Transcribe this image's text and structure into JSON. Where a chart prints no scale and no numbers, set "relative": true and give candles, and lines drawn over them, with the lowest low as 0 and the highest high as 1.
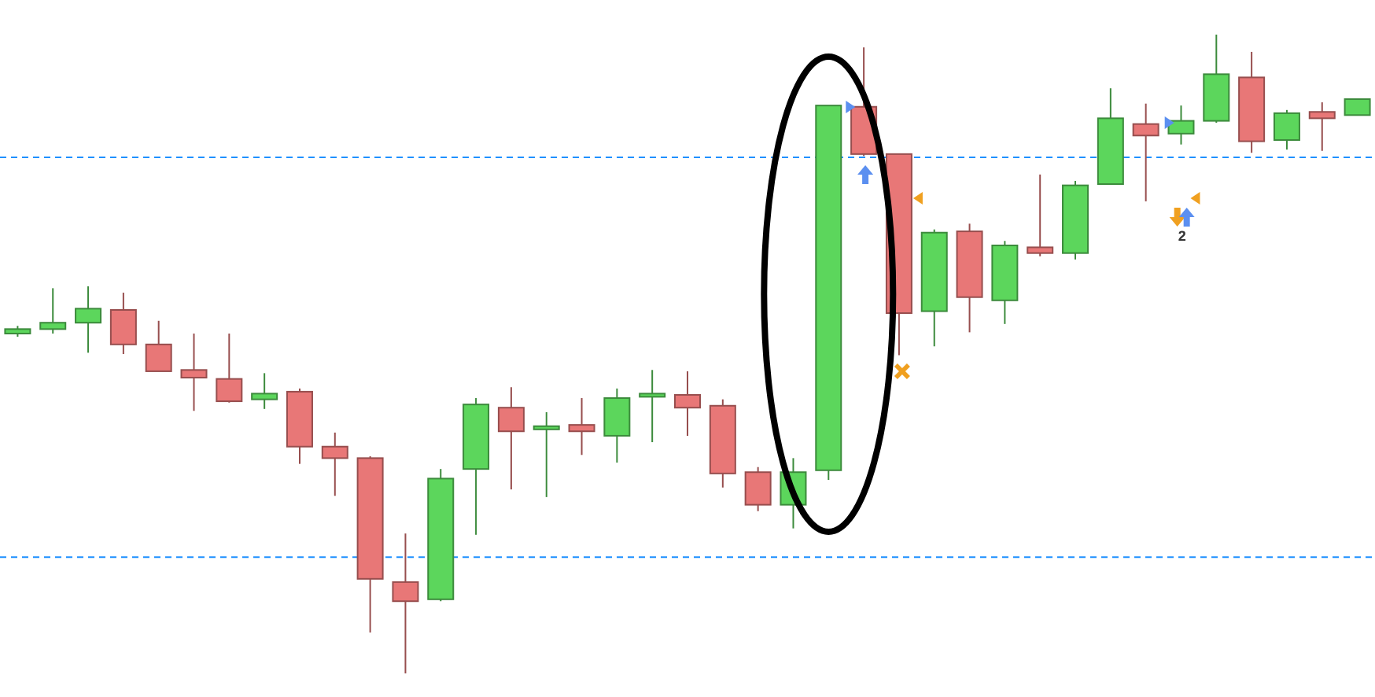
{
  "chart_data": {
    "type": "candlestick",
    "relative": true,
    "categories": [
      null,
      null,
      null,
      null,
      null,
      null,
      null,
      null,
      null,
      null,
      null,
      null,
      null,
      null,
      null,
      null,
      null,
      null,
      null,
      null,
      null,
      null,
      null,
      null,
      null,
      null,
      null,
      null,
      null,
      null,
      null,
      null,
      null,
      null,
      null,
      null,
      null,
      null,
      null
    ],
    "ohlc": [
      [
        0.532,
        0.544,
        0.527,
        0.539
      ],
      [
        0.539,
        0.603,
        0.532,
        0.549
      ],
      [
        0.549,
        0.606,
        0.502,
        0.571
      ],
      [
        0.569,
        0.596,
        0.5,
        0.515
      ],
      [
        0.515,
        0.552,
        0.473,
        0.473
      ],
      [
        0.475,
        0.532,
        0.411,
        0.463
      ],
      [
        0.461,
        0.532,
        0.424,
        0.426
      ],
      [
        0.429,
        0.47,
        0.414,
        0.438
      ],
      [
        0.441,
        0.446,
        0.328,
        0.355
      ],
      [
        0.355,
        0.377,
        0.278,
        0.337
      ],
      [
        0.337,
        0.34,
        0.064,
        0.148
      ],
      [
        0.143,
        0.219,
        0,
        0.113
      ],
      [
        0.116,
        0.32,
        0.113,
        0.305
      ],
      [
        0.32,
        0.431,
        0.217,
        0.421
      ],
      [
        0.416,
        0.448,
        0.288,
        0.379
      ],
      [
        0.382,
        0.409,
        0.276,
        0.387
      ],
      [
        0.389,
        0.431,
        0.342,
        0.379
      ],
      [
        0.372,
        0.446,
        0.33,
        0.431
      ],
      [
        0.433,
        0.475,
        0.362,
        0.438
      ],
      [
        0.436,
        0.473,
        0.372,
        0.416
      ],
      [
        0.419,
        0.429,
        0.291,
        0.313
      ],
      [
        0.315,
        0.323,
        0.254,
        0.264
      ],
      [
        0.264,
        0.337,
        0.227,
        0.315
      ],
      [
        0.318,
        0.889,
        0.303,
        0.889
      ],
      [
        0.887,
        0.98,
        0.81,
        0.813
      ],
      [
        0.813,
        0.813,
        0.498,
        0.564
      ],
      [
        0.567,
        0.695,
        0.512,
        0.69
      ],
      [
        0.692,
        0.704,
        0.534,
        0.589
      ],
      [
        0.584,
        0.677,
        0.547,
        0.67
      ],
      [
        0.667,
        0.781,
        0.653,
        0.658
      ],
      [
        0.658,
        0.771,
        0.648,
        0.764
      ],
      [
        0.766,
        0.916,
        0.766,
        0.869
      ],
      [
        0.86,
        0.892,
        0.739,
        0.842
      ],
      [
        0.845,
        0.889,
        0.828,
        0.865
      ],
      [
        0.865,
        1,
        0.862,
        0.938
      ],
      [
        0.933,
        0.973,
        0.815,
        0.833
      ],
      [
        0.835,
        0.882,
        0.82,
        0.877
      ],
      [
        0.879,
        0.894,
        0.818,
        0.869
      ],
      [
        0.874,
        0.899,
        0.874,
        0.899
      ]
    ],
    "colors": [
      "#5cd65c",
      "#5cd65c",
      "#5cd65c",
      "#e87777",
      "#e87777",
      "#e87777",
      "#e87777",
      "#5cd65c",
      "#e87777",
      "#e87777",
      "#e87777",
      "#e87777",
      "#5cd65c",
      "#5cd65c",
      "#e87777",
      "#5cd65c",
      "#e87777",
      "#5cd65c",
      "#5cd65c",
      "#e87777",
      "#e87777",
      "#e87777",
      "#5cd65c",
      "#5cd65c",
      "#e87777",
      "#e87777",
      "#5cd65c",
      "#e87777",
      "#5cd65c",
      "#e87777",
      "#5cd65c",
      "#5cd65c",
      "#e87777",
      "#5cd65c",
      "#5cd65c",
      "#e87777",
      "#5cd65c",
      "#e87777",
      "#5cd65c"
    ],
    "ref_lines": [
      {
        "axis": "y",
        "value": 0.808,
        "color": "#1e90ff",
        "line_style": "dashed"
      },
      {
        "axis": "y",
        "value": 0.182,
        "color": "#1e90ff",
        "line_style": "dashed"
      }
    ],
    "annotations": [
      "2"
    ]
  }
}
